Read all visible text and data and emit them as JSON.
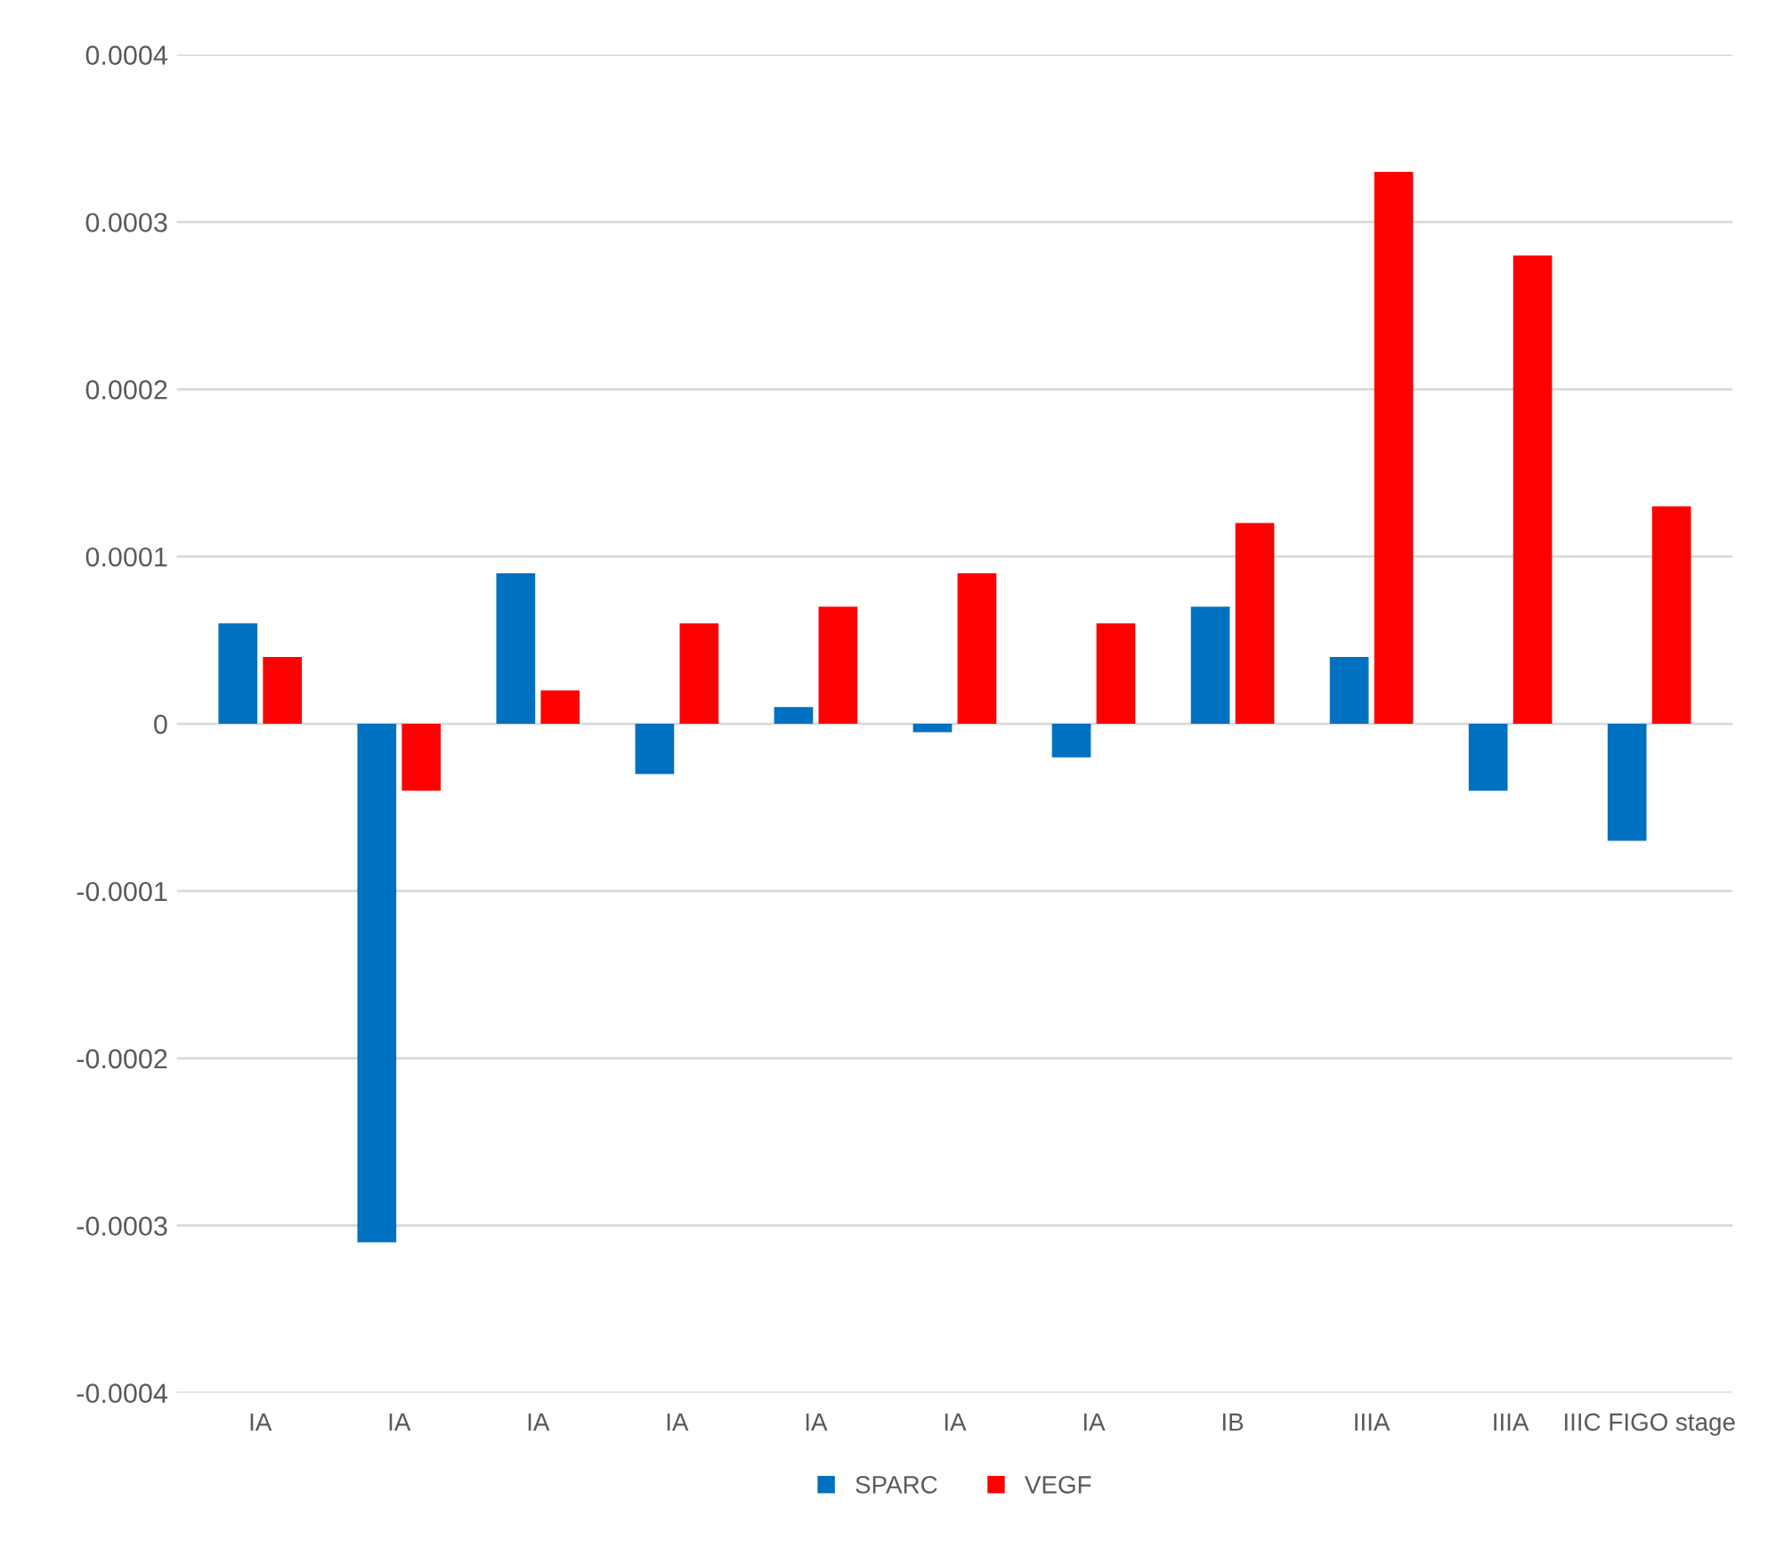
{
  "chart_data": {
    "type": "bar",
    "categories": [
      "IA",
      "IA",
      "IA",
      "IA",
      "IA",
      "IA",
      "IA",
      "IB",
      "IIIA",
      "IIIA",
      "IIIC FIGO stage"
    ],
    "series": [
      {
        "name": "SPARC",
        "color": "#0070c0",
        "values": [
          6e-05,
          -0.00031,
          9e-05,
          -3e-05,
          1e-05,
          -5e-06,
          -2e-05,
          7e-05,
          4e-05,
          -4e-05,
          -7e-05
        ]
      },
      {
        "name": "VEGF",
        "color": "#ff0000",
        "values": [
          4e-05,
          -4e-05,
          2e-05,
          6e-05,
          7e-05,
          9e-05,
          6e-05,
          0.00012,
          0.00033,
          0.00028,
          0.00013
        ]
      }
    ],
    "ylim": [
      -0.0004,
      0.0004
    ],
    "yticks": [
      -0.0004,
      -0.0003,
      -0.0002,
      -0.0001,
      0,
      0.0001,
      0.0002,
      0.0003,
      0.0004
    ],
    "grid": "y",
    "legend": "bottom"
  }
}
